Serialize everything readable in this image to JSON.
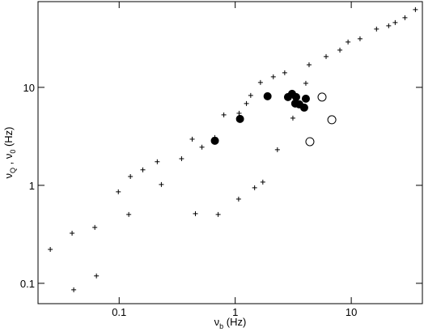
{
  "chart_data": {
    "type": "scatter",
    "log_x": true,
    "log_y": true,
    "xlim": [
      0.02,
      41
    ],
    "ylim": [
      0.062,
      75
    ],
    "xticks": [
      0.1,
      1,
      10
    ],
    "yticks": [
      0.1,
      1,
      10
    ],
    "xlabel": [
      {
        "text": "ν"
      },
      {
        "sub": "b"
      },
      {
        "text": " (Hz)"
      }
    ],
    "ylabel": [
      {
        "text": "ν"
      },
      {
        "sub": "Q"
      },
      {
        "text": " , ν"
      },
      {
        "sub": "0"
      },
      {
        "text": " (Hz)"
      }
    ],
    "series": [
      {
        "marker": "cross",
        "color": "#000000",
        "x": [
          0.0255,
          0.0393,
          0.0617,
          0.0637,
          0.0984,
          0.125,
          0.16,
          0.213,
          0.345,
          0.426,
          0.517,
          0.668,
          0.798,
          1.08,
          1.25,
          1.36,
          1.65,
          2.13,
          2.67,
          4.06,
          4.33,
          6.07,
          7.98,
          9.38,
          11.9,
          16.5,
          21.0,
          23.9,
          29.0,
          35.7,
          0.0406,
          0.121,
          0.231,
          0.454,
          0.713,
          1.07,
          1.47,
          1.73,
          2.31,
          3.14
        ],
        "values": [
          0.222,
          0.325,
          0.372,
          0.119,
          0.859,
          1.23,
          1.44,
          1.74,
          1.87,
          2.96,
          2.45,
          3.07,
          5.24,
          5.44,
          6.84,
          8.27,
          11.2,
          12.8,
          14.1,
          11.0,
          17.0,
          20.6,
          24.0,
          29.0,
          31.3,
          39.4,
          42.5,
          45.8,
          51.4,
          62.1,
          0.0859,
          0.504,
          1.02,
          0.514,
          0.504,
          0.724,
          0.944,
          1.08,
          2.31,
          4.85
        ]
      },
      {
        "marker": "filled",
        "color": "#000000",
        "x": [
          0.668,
          1.1,
          1.9,
          2.85,
          3.09,
          3.35,
          3.29,
          3.57,
          3.93,
          4.06
        ],
        "values": [
          2.85,
          4.76,
          8.11,
          7.96,
          8.59,
          7.96,
          6.84,
          6.7,
          6.21,
          7.66
        ]
      },
      {
        "marker": "open",
        "color": "#000000",
        "x": [
          5.6,
          6.8,
          4.4
        ],
        "values": [
          7.96,
          4.67,
          2.79
        ]
      }
    ]
  }
}
